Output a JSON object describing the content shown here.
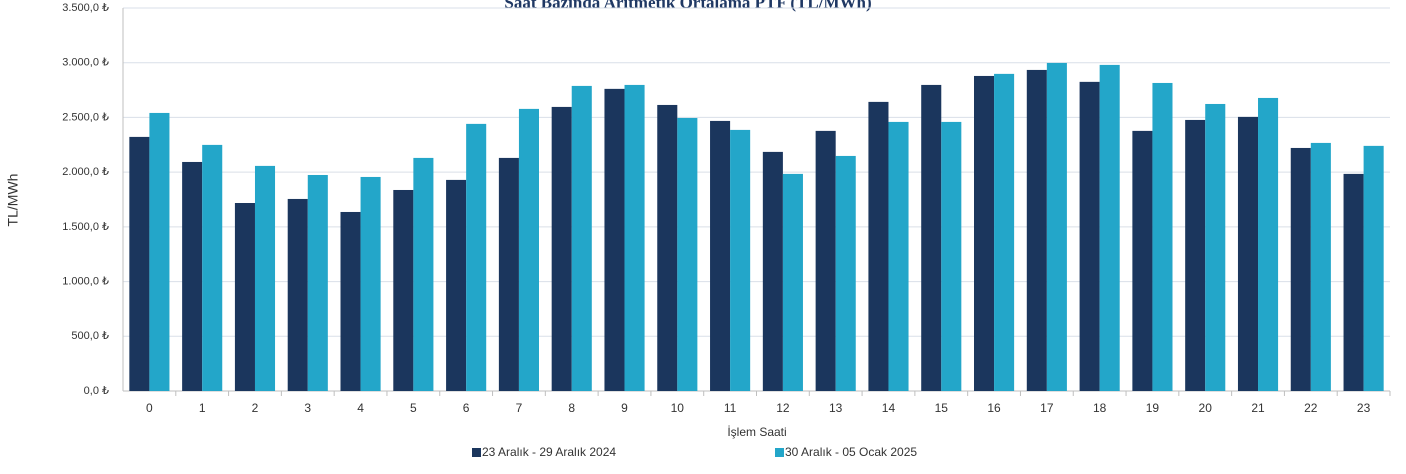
{
  "chart_data": {
    "type": "bar",
    "title": "Saat Bazında Aritmetik Ortalama PTF (TL/MWh)",
    "x_label": "İşlem Saati",
    "y_label": "TL/MWh",
    "categories": [
      "0",
      "1",
      "2",
      "3",
      "4",
      "5",
      "6",
      "7",
      "8",
      "9",
      "10",
      "11",
      "12",
      "13",
      "14",
      "15",
      "16",
      "17",
      "18",
      "19",
      "20",
      "21",
      "22",
      "23"
    ],
    "series": [
      {
        "name": "23 Aralık - 29 Aralık 2024",
        "color": "#1b365d",
        "values": [
          2322,
          2093,
          1718,
          1755,
          1636,
          1837,
          1929,
          2130,
          2596,
          2761,
          2614,
          2468,
          2185,
          2377,
          2642,
          2797,
          2879,
          2934,
          2825,
          2377,
          2477,
          2505,
          2221,
          1984
        ]
      },
      {
        "name": "30 Aralık - 05 Ocak 2025",
        "color": "#23a6c9",
        "values": [
          2541,
          2249,
          2057,
          1974,
          1956,
          2130,
          2441,
          2578,
          2788,
          2797,
          2495,
          2386,
          1984,
          2148,
          2459,
          2459,
          2898,
          2998,
          2980,
          2815,
          2623,
          2678,
          2267,
          2240
        ]
      }
    ],
    "ylim": [
      0,
      3500
    ],
    "yticks": [
      {
        "value": 0,
        "label": "0,0 ₺"
      },
      {
        "value": 500,
        "label": "500,0 ₺"
      },
      {
        "value": 1000,
        "label": "1.000,0 ₺"
      },
      {
        "value": 1500,
        "label": "1.500,0 ₺"
      },
      {
        "value": 2000,
        "label": "2.000,0 ₺"
      },
      {
        "value": 2500,
        "label": "2.500,0 ₺"
      },
      {
        "value": 3000,
        "label": "3.000,0 ₺"
      },
      {
        "value": 3500,
        "label": "3.500,0 ₺"
      }
    ],
    "grid": true,
    "legend": "bottom"
  }
}
